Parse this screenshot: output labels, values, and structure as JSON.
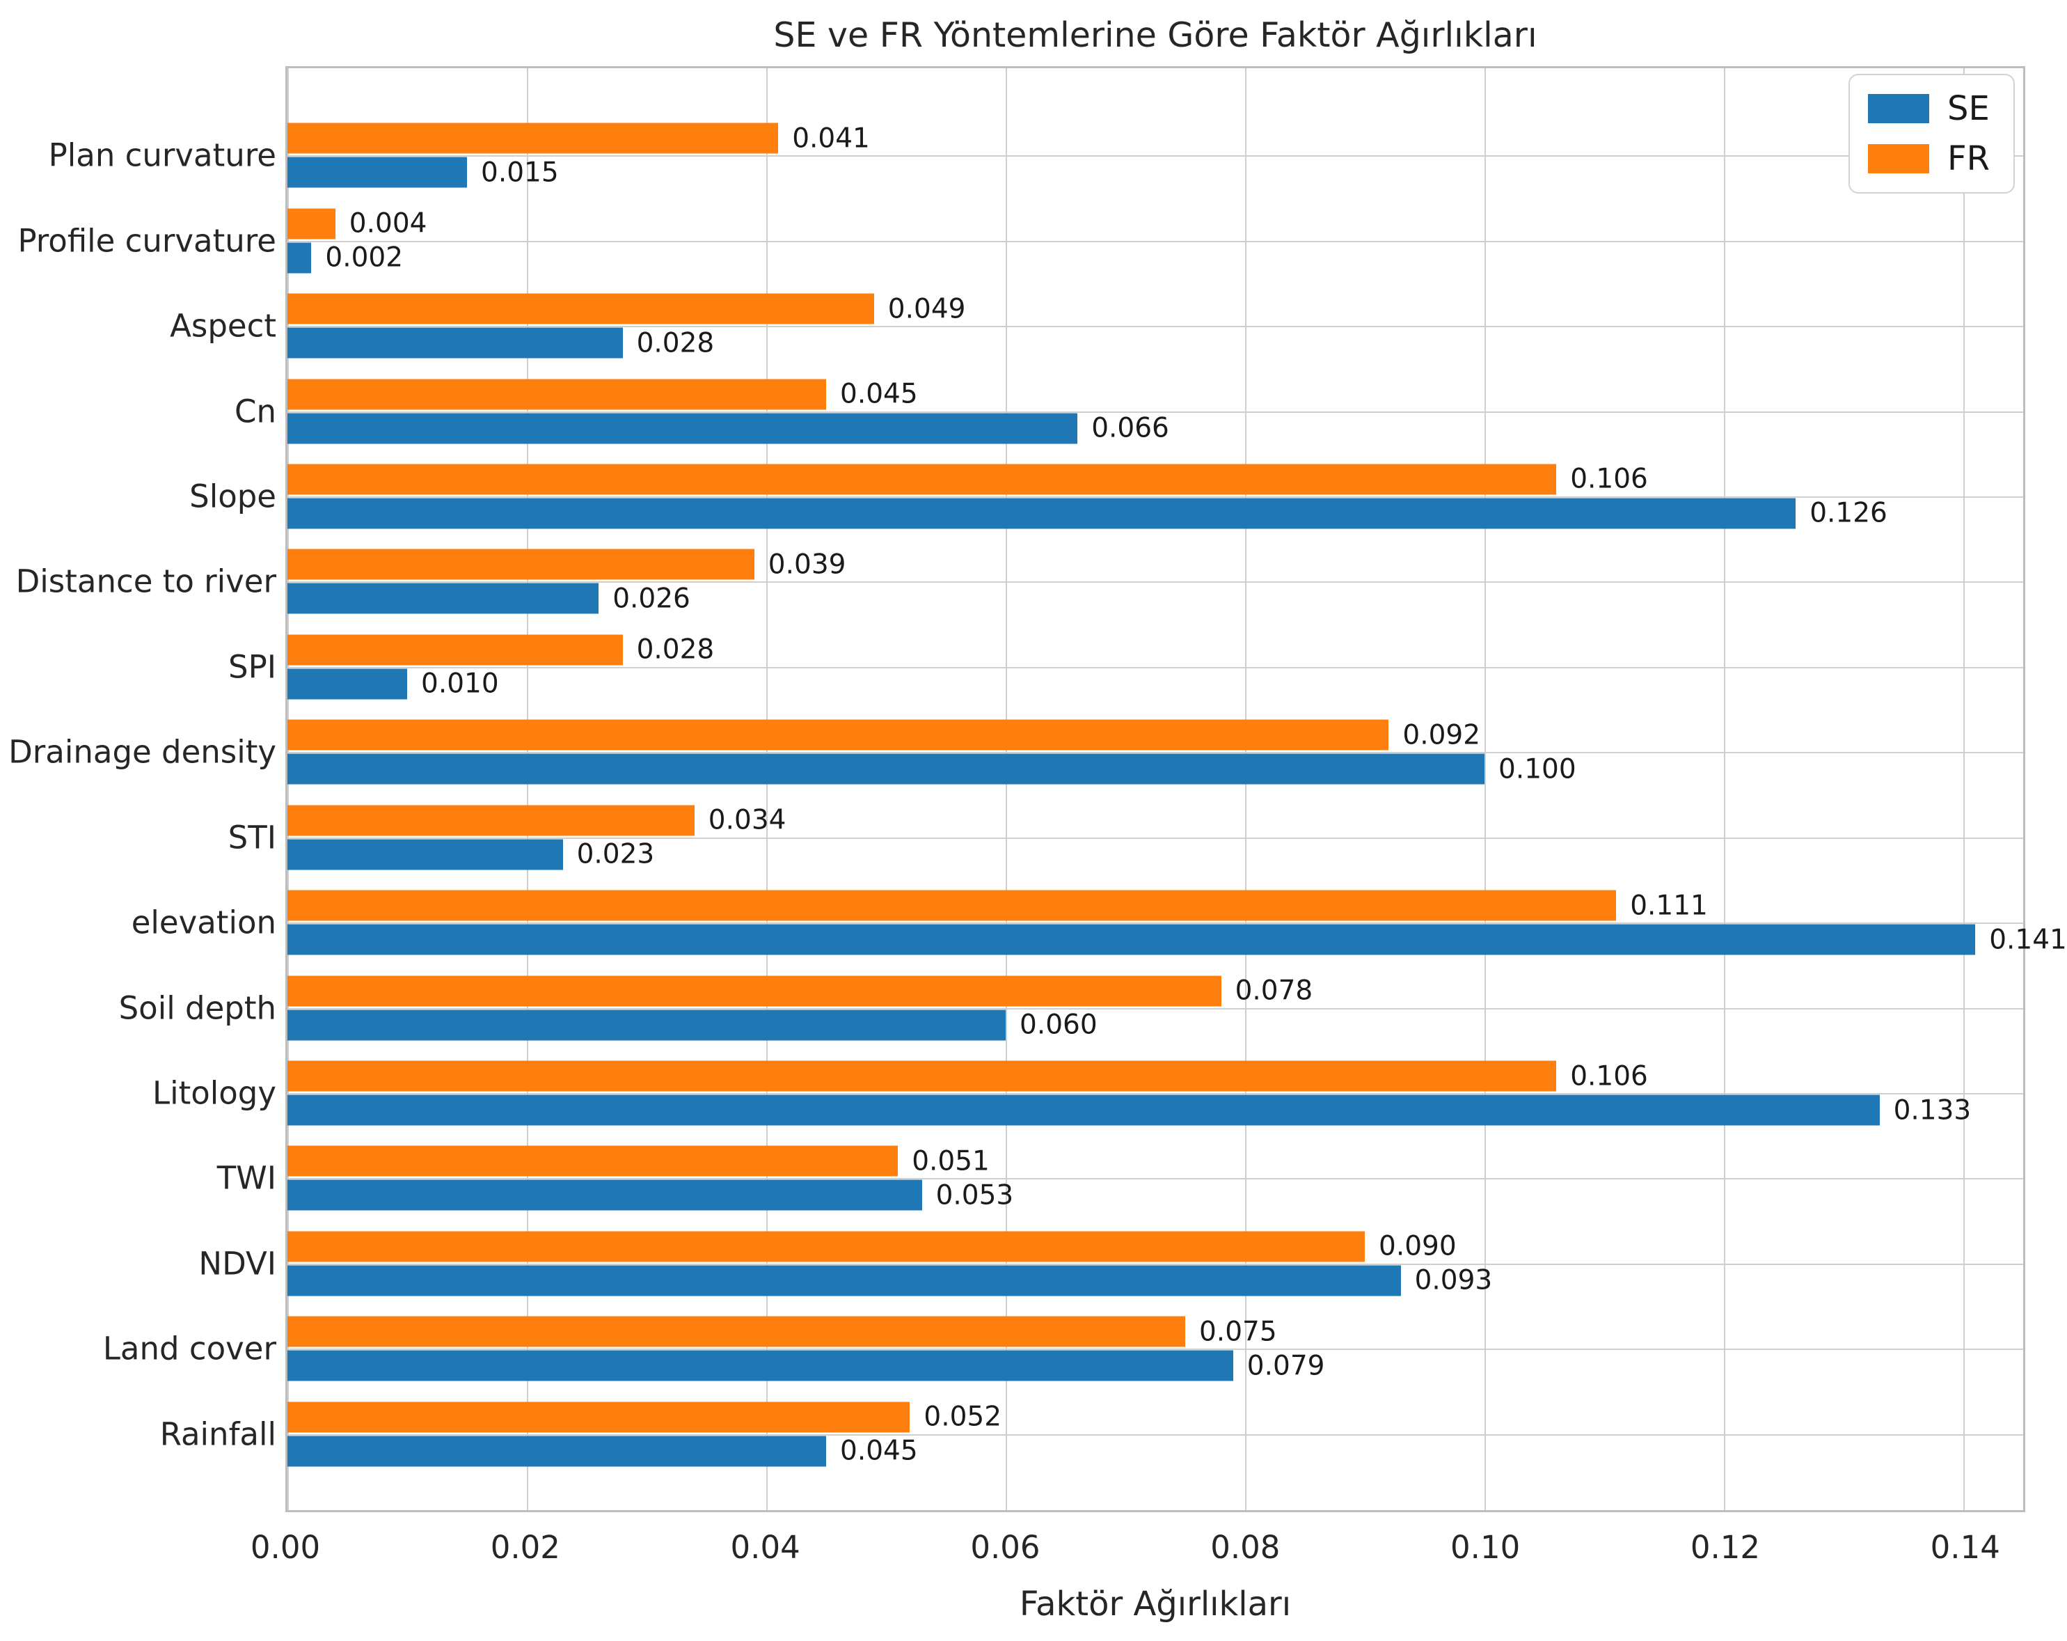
{
  "chart_data": {
    "type": "bar",
    "orientation": "horizontal",
    "title": "SE ve FR Yöntemlerine Göre Faktör Ağırlıkları",
    "xlabel": "Faktör Ağırlıkları",
    "categories": [
      "Plan curvature",
      "Profile curvature",
      "Aspect",
      "Cn",
      "Slope",
      "Distance to river",
      "SPI",
      "Drainage density",
      "STI",
      "elevation",
      "Soil depth",
      "Litology",
      "TWI",
      "NDVI",
      "Land cover",
      "Rainfall"
    ],
    "series": [
      {
        "name": "SE",
        "color": "#1f77b4",
        "values": [
          0.015,
          0.002,
          0.028,
          0.066,
          0.126,
          0.026,
          0.01,
          0.1,
          0.023,
          0.141,
          0.06,
          0.133,
          0.053,
          0.093,
          0.079,
          0.045
        ]
      },
      {
        "name": "FR",
        "color": "#ff7f0e",
        "values": [
          0.041,
          0.004,
          0.049,
          0.045,
          0.106,
          0.039,
          0.028,
          0.092,
          0.034,
          0.111,
          0.078,
          0.106,
          0.051,
          0.09,
          0.075,
          0.052
        ]
      }
    ],
    "bar_order_top_to_bottom": [
      "FR",
      "SE"
    ],
    "value_label_decimals": 3,
    "xlim": [
      0,
      0.145
    ],
    "xticks": {
      "values": [
        0,
        0.02,
        0.04,
        0.06,
        0.08,
        0.1,
        0.12,
        0.14
      ],
      "labels": [
        "0.00",
        "0.02",
        "0.04",
        "0.06",
        "0.08",
        "0.10",
        "0.12",
        "0.14"
      ]
    },
    "grid": "both",
    "grid_color": "#cfcfcf",
    "legend": {
      "position": "upper right",
      "entries": [
        {
          "label": "SE",
          "color": "#1f77b4"
        },
        {
          "label": "FR",
          "color": "#ff7f0e"
        }
      ]
    }
  }
}
